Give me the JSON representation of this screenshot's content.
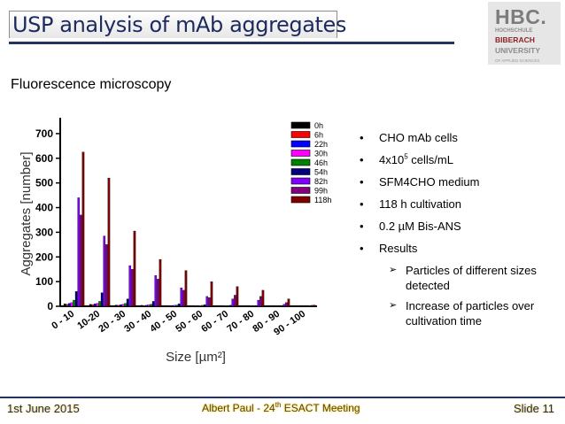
{
  "slide": {
    "title": "USP analysis of mAb aggregates",
    "subtitle": "Fluorescence microscopy",
    "logo": {
      "big": "HBC.",
      "line1": "HOCHSCHULE",
      "line2": "BIBERACH",
      "line3": "UNIVERSITY",
      "line4": "OF APPLIED SCIENCES"
    },
    "bullets": [
      {
        "text": "CHO mAb cells"
      },
      {
        "text": "4x10",
        "sup": "5",
        "after": " cells/mL"
      },
      {
        "text": "SFM4CHO medium"
      },
      {
        "text": "118 h cultivation"
      },
      {
        "text": "0.2 µM Bis-ANS"
      },
      {
        "text": "Results"
      }
    ],
    "sub_bullets": [
      "Particles of different sizes detected",
      "Increase of particles over cultivation time"
    ],
    "footer": {
      "date": "1st June 2015",
      "center_pre": "Albert Paul - 24",
      "center_sup": "th",
      "center_post": " ESACT Meeting",
      "slide": "Slide 11"
    }
  },
  "chart_data": {
    "type": "bar",
    "xlabel": "Size [µm²]",
    "ylabel": "Aggregates [number]",
    "ylim": [
      0,
      750
    ],
    "yticks": [
      0,
      100,
      200,
      300,
      400,
      500,
      600,
      700
    ],
    "categories": [
      "0 - 10",
      "10-20",
      "20 - 30",
      "30 - 40",
      "40 - 50",
      "50 - 60",
      "60 - 70",
      "70 - 80",
      "80 - 90",
      "90 - 100"
    ],
    "legend_position": "top-right",
    "series": [
      {
        "name": "0h",
        "color": "#000000",
        "values": [
          10,
          8,
          5,
          4,
          3,
          2,
          2,
          1,
          1,
          0
        ]
      },
      {
        "name": "6h",
        "color": "#ff0000",
        "values": [
          8,
          7,
          4,
          3,
          2,
          2,
          1,
          1,
          0,
          0
        ]
      },
      {
        "name": "22h",
        "color": "#0000ff",
        "values": [
          12,
          10,
          6,
          4,
          3,
          2,
          2,
          1,
          1,
          0
        ]
      },
      {
        "name": "30h",
        "color": "#ff00ff",
        "values": [
          15,
          12,
          8,
          6,
          4,
          3,
          2,
          2,
          1,
          0
        ]
      },
      {
        "name": "46h",
        "color": "#008000",
        "values": [
          25,
          20,
          12,
          8,
          5,
          4,
          3,
          2,
          1,
          0
        ]
      },
      {
        "name": "54h",
        "color": "#000080",
        "values": [
          60,
          55,
          30,
          20,
          10,
          6,
          4,
          3,
          2,
          1
        ]
      },
      {
        "name": "82h",
        "color": "#8000ff",
        "values": [
          440,
          285,
          165,
          125,
          75,
          40,
          30,
          25,
          8,
          2
        ]
      },
      {
        "name": "99h",
        "color": "#800080",
        "values": [
          370,
          250,
          150,
          110,
          65,
          35,
          45,
          40,
          15,
          4
        ]
      },
      {
        "name": "118h",
        "color": "#800000",
        "values": [
          625,
          520,
          305,
          190,
          145,
          100,
          80,
          65,
          30,
          5
        ]
      }
    ]
  }
}
